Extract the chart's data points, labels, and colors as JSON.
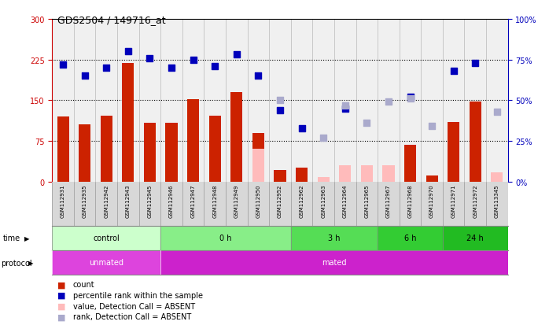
{
  "title": "GDS2504 / 149716_at",
  "samples": [
    "GSM112931",
    "GSM112935",
    "GSM112942",
    "GSM112943",
    "GSM112945",
    "GSM112946",
    "GSM112947",
    "GSM112948",
    "GSM112949",
    "GSM112950",
    "GSM112952",
    "GSM112962",
    "GSM112963",
    "GSM112964",
    "GSM112965",
    "GSM112967",
    "GSM112968",
    "GSM112970",
    "GSM112971",
    "GSM112972",
    "GSM113345"
  ],
  "bar_values": [
    120,
    105,
    122,
    218,
    109,
    109,
    152,
    122,
    165,
    90,
    22,
    26,
    7,
    null,
    null,
    null,
    68,
    11,
    110,
    148,
    null
  ],
  "bar_absent_values": [
    null,
    null,
    null,
    null,
    null,
    null,
    null,
    null,
    null,
    60,
    null,
    null,
    8,
    30,
    30,
    30,
    null,
    null,
    null,
    null,
    17
  ],
  "rank_pct": [
    72,
    65,
    70,
    80,
    76,
    70,
    75,
    71,
    78,
    65,
    44,
    33,
    null,
    45,
    null,
    null,
    52,
    null,
    68,
    73,
    null
  ],
  "rank_absent_pct": [
    null,
    null,
    null,
    null,
    null,
    null,
    null,
    null,
    null,
    null,
    50,
    null,
    27,
    47,
    36,
    49,
    51,
    34,
    null,
    null,
    43
  ],
  "ylim_left": [
    0,
    300
  ],
  "ylim_right": [
    0,
    100
  ],
  "yticks_left": [
    0,
    75,
    150,
    225,
    300
  ],
  "yticks_right": [
    0,
    25,
    50,
    75,
    100
  ],
  "ytick_labels_left": [
    "0",
    "75",
    "150",
    "225",
    "300"
  ],
  "ytick_labels_right": [
    "0%",
    "25%",
    "50%",
    "75%",
    "100%"
  ],
  "hlines": [
    75,
    150,
    225
  ],
  "bar_color": "#cc2200",
  "bar_absent_color": "#ffbbbb",
  "rank_color": "#0000bb",
  "rank_absent_color": "#aaaacc",
  "time_groups": [
    {
      "label": "control",
      "start": 0,
      "end": 5,
      "color": "#ccffcc"
    },
    {
      "label": "0 h",
      "start": 5,
      "end": 11,
      "color": "#88ee88"
    },
    {
      "label": "3 h",
      "start": 11,
      "end": 15,
      "color": "#55dd55"
    },
    {
      "label": "6 h",
      "start": 15,
      "end": 18,
      "color": "#33cc33"
    },
    {
      "label": "24 h",
      "start": 18,
      "end": 21,
      "color": "#22bb22"
    }
  ],
  "protocol_groups": [
    {
      "label": "unmated",
      "start": 0,
      "end": 5,
      "color": "#dd44dd"
    },
    {
      "label": "mated",
      "start": 5,
      "end": 21,
      "color": "#cc22cc"
    }
  ],
  "legend_items": [
    {
      "label": "count",
      "color": "#cc2200"
    },
    {
      "label": "percentile rank within the sample",
      "color": "#0000bb"
    },
    {
      "label": "value, Detection Call = ABSENT",
      "color": "#ffbbbb"
    },
    {
      "label": "rank, Detection Call = ABSENT",
      "color": "#aaaacc"
    }
  ],
  "left_axis_color": "#cc0000",
  "right_axis_color": "#0000bb"
}
